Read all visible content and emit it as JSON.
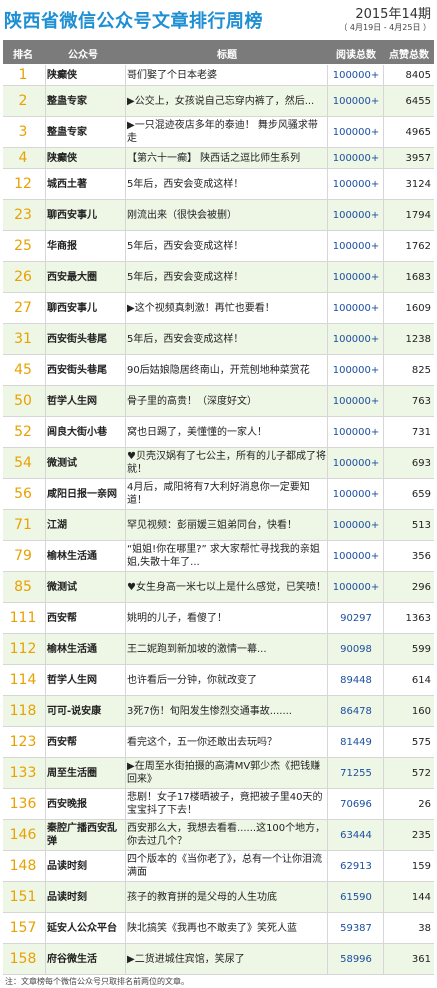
{
  "header": {
    "title": "陕西省微信公众号文章排行周榜",
    "period": "2015年14期",
    "range": "（ 4月19日 - 4月25日 ）"
  },
  "columns": {
    "rank": "排名",
    "account": "公众号",
    "title": "标题",
    "reads": "阅读总数",
    "likes": "点赞总数"
  },
  "rows": [
    {
      "rank": "1",
      "account": "陕癫侠",
      "title": "哥们娶了个日本老婆",
      "reads": "100000+",
      "likes": "8405"
    },
    {
      "rank": "2",
      "account": "整蛊专家",
      "title": "▶公交上，女孩说自己忘穿内裤了，然后...",
      "reads": "100000+",
      "likes": "6455"
    },
    {
      "rank": "3",
      "account": "整蛊专家",
      "title": "▶一只混迹夜店多年的泰迪！ 舞步风骚求带走",
      "reads": "100000+",
      "likes": "4965"
    },
    {
      "rank": "4",
      "account": "陕癫侠",
      "title": "【第六十一癫】 陕西话之逗比师生系列",
      "reads": "100000+",
      "likes": "3957"
    },
    {
      "rank": "12",
      "account": "城西土著",
      "title": "5年后，西安会变成这样！",
      "reads": "100000+",
      "likes": "3124"
    },
    {
      "rank": "23",
      "account": "聊西安事儿",
      "title": "刚流出来（很快会被删）",
      "reads": "100000+",
      "likes": "1794"
    },
    {
      "rank": "25",
      "account": "华商报",
      "title": "5年后，西安会变成这样！",
      "reads": "100000+",
      "likes": "1762"
    },
    {
      "rank": "26",
      "account": "西安最大圈",
      "title": "5年后，西安会变成这样！",
      "reads": "100000+",
      "likes": "1683"
    },
    {
      "rank": "27",
      "account": "聊西安事儿",
      "title": "▶这个视频真刺激！再忙也要看！",
      "reads": "100000+",
      "likes": "1609"
    },
    {
      "rank": "31",
      "account": "西安街头巷尾",
      "title": "5年后，西安会变成这样！",
      "reads": "100000+",
      "likes": "1238"
    },
    {
      "rank": "45",
      "account": "西安街头巷尾",
      "title": "90后姑娘隐居终南山，开荒刨地种菜赏花",
      "reads": "100000+",
      "likes": "825"
    },
    {
      "rank": "50",
      "account": "哲学人生网",
      "title": "骨子里的高贵！（深度好文）",
      "reads": "100000+",
      "likes": "763"
    },
    {
      "rank": "52",
      "account": "闾良大街小巷",
      "title": "窝也日踢了，美懂懂的一家人！",
      "reads": "100000+",
      "likes": "731"
    },
    {
      "rank": "54",
      "account": "微测试",
      "title": "♥贝壳汉娲有了七公主，所有的儿子都成了将就！",
      "reads": "100000+",
      "likes": "693"
    },
    {
      "rank": "56",
      "account": "咸阳日报一亲网",
      "title": "4月后，咸阳将有7大利好消息你一定要知道！",
      "reads": "100000+",
      "likes": "659"
    },
    {
      "rank": "71",
      "account": "江湖",
      "title": "罕见视频：彭丽媛三姐弟同台，快看！",
      "reads": "100000+",
      "likes": "513"
    },
    {
      "rank": "79",
      "account": "榆林生活通",
      "title": "“姐姐!你在哪里?” 求大家帮忙寻找我的亲姐姐,失散十年了...",
      "reads": "100000+",
      "likes": "356"
    },
    {
      "rank": "85",
      "account": "微测试",
      "title": "♥女生身高一米七以上是什么感觉，已笑喷！",
      "reads": "100000+",
      "likes": "296"
    },
    {
      "rank": "111",
      "account": "西安帮",
      "title": "姚明的儿子，看傻了！",
      "reads": "90297",
      "likes": "1363"
    },
    {
      "rank": "112",
      "account": "榆林生活通",
      "title": "王二妮跑到新加坡的激情一幕...",
      "reads": "90098",
      "likes": "599"
    },
    {
      "rank": "114",
      "account": "哲学人生网",
      "title": "也许看后一分钟，你就改变了",
      "reads": "89448",
      "likes": "614"
    },
    {
      "rank": "118",
      "account": "可可-说安康",
      "title": "3死7伤！旬阳发生惨烈交通事故.......",
      "reads": "86478",
      "likes": "160"
    },
    {
      "rank": "123",
      "account": "西安帮",
      "title": "看完这个，五一你还敢出去玩吗？",
      "reads": "81449",
      "likes": "575"
    },
    {
      "rank": "133",
      "account": "周至生活圈",
      "title": "▶在周至水街拍摄的高清MV郭少杰《把钱赚回来》",
      "reads": "71255",
      "likes": "572"
    },
    {
      "rank": "136",
      "account": "西安晚报",
      "title": "悲剧！女子17楼晒被子，竟把被子里40天的宝宝抖了下去！",
      "reads": "70696",
      "likes": "26"
    },
    {
      "rank": "146",
      "account": "秦腔广播西安乱弹",
      "title": "西安那么大，我想去看看......这100个地方，你去过几个？",
      "reads": "63444",
      "likes": "235"
    },
    {
      "rank": "148",
      "account": "品读时刻",
      "title": "四个版本的《当你老了》，总有一个让你泪流满面",
      "reads": "62913",
      "likes": "159"
    },
    {
      "rank": "151",
      "account": "品读时刻",
      "title": "孩子的教育拼的是父母的人生功底",
      "reads": "61590",
      "likes": "144"
    },
    {
      "rank": "157",
      "account": "延安人公众平台",
      "title": "陕北搞笑《我再也不敢卖了》笑死人蓝",
      "reads": "59387",
      "likes": "38"
    },
    {
      "rank": "158",
      "account": "府谷微生活",
      "title": "▶二货进城住宾馆，笑尿了",
      "reads": "58996",
      "likes": "361"
    }
  ],
  "footnote": "注：文章榜每个微信公众号只取排名前两位的文章。"
}
